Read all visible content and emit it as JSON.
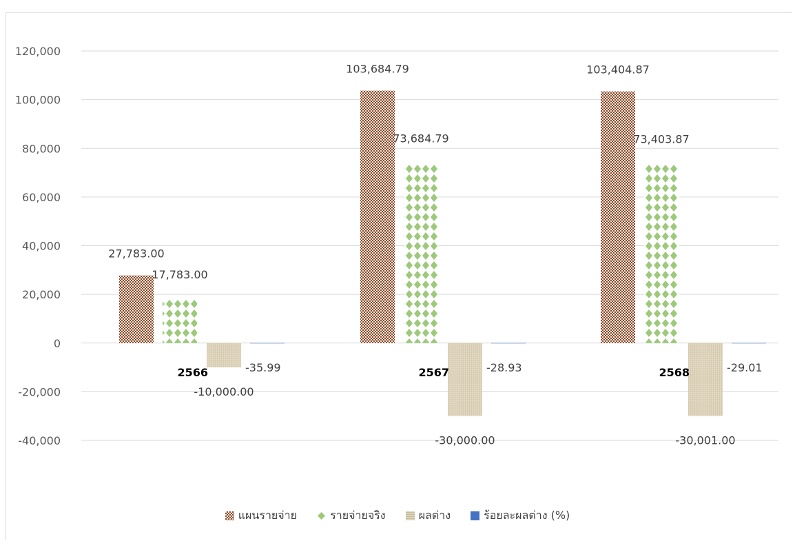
{
  "chart_data": {
    "type": "bar",
    "categories": [
      "2566",
      "2567",
      "2568"
    ],
    "series": [
      {
        "name": "แผนรายจ่าย",
        "values": [
          27783.0,
          103684.79,
          103404.87
        ],
        "labels": [
          "27,783.00",
          "103,684.79",
          "103,404.87"
        ],
        "color": "#8b4a2b",
        "pattern": "checker"
      },
      {
        "name": "รายจ่ายจริง",
        "values": [
          17783.0,
          73684.79,
          73403.87
        ],
        "labels": [
          "17,783.00",
          "73,684.79",
          "73,403.87"
        ],
        "color": "#9cc97a",
        "pattern": "diamond"
      },
      {
        "name": "ผลต่าง",
        "values": [
          -10000.0,
          -30000.0,
          -30001.0
        ],
        "labels": [
          "-10,000.00",
          "-30,000.00",
          "-30,001.00"
        ],
        "color": "#d6cbb0",
        "pattern": "linen"
      },
      {
        "name": "ร้อยละผลต่าง (%)",
        "values": [
          -35.99,
          -28.93,
          -29.01
        ],
        "labels": [
          "-35.99",
          "-28.93",
          "-29.01"
        ],
        "color": "#4472c4",
        "pattern": "solid"
      }
    ],
    "yticks": [
      "120,000",
      "100,000",
      "80,000",
      "60,000",
      "40,000",
      "20,000",
      "0",
      "-20,000",
      "-40,000"
    ],
    "ylim": [
      -40000,
      120000
    ],
    "grid": true,
    "legend": "bottom"
  }
}
